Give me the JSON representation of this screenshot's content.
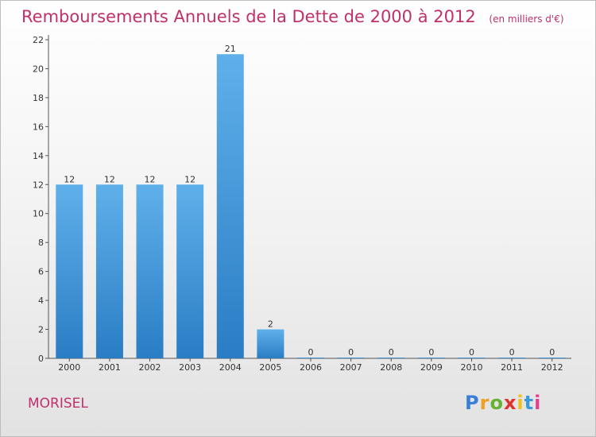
{
  "title": "Remboursements Annuels de la Dette de 2000 à 2012",
  "subtitle": "(en milliers d'€)",
  "commune": "MORISEL",
  "logo": {
    "letters": [
      "P",
      "r",
      "o",
      "x",
      "i",
      "t",
      "i"
    ],
    "colors": [
      "#3a7fd5",
      "#f0a020",
      "#66b032",
      "#e03030",
      "#f0c020",
      "#3a9ad5",
      "#e04090"
    ]
  },
  "colors": {
    "title": "#c0306b",
    "bar_top": "#5fb0ea",
    "bar_bottom": "#2a7dc4"
  },
  "chart_data": {
    "type": "bar",
    "categories": [
      "2000",
      "2001",
      "2002",
      "2003",
      "2004",
      "2005",
      "2006",
      "2007",
      "2008",
      "2009",
      "2010",
      "2011",
      "2012"
    ],
    "values": [
      12,
      12,
      12,
      12,
      21,
      2,
      0,
      0,
      0,
      0,
      0,
      0,
      0
    ],
    "value_labels": [
      "12",
      "12",
      "12",
      "12",
      "21",
      "2",
      "0",
      "0",
      "0",
      "0",
      "0",
      "0",
      "0"
    ],
    "title": "Remboursements Annuels de la Dette de 2000 à 2012",
    "subtitle": "(en milliers d'€)",
    "ylim": [
      0,
      22
    ],
    "yticks": [
      "0",
      "2",
      "4",
      "6",
      "8",
      "10",
      "12",
      "14",
      "16",
      "18",
      "20",
      "22"
    ],
    "grid": false,
    "legend": "none"
  }
}
